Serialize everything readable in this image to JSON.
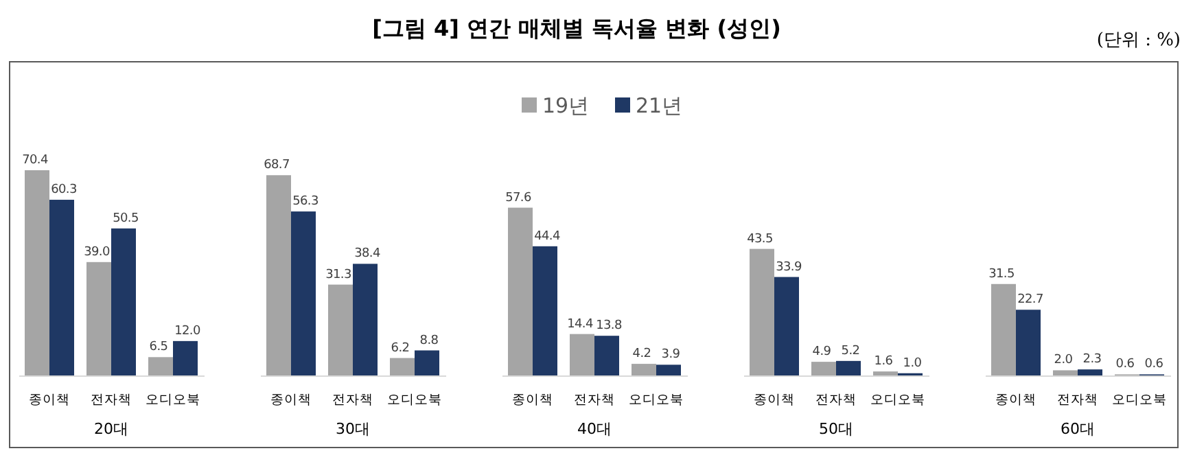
{
  "chart_data": [
    {
      "type": "other",
      "title": "[그림 4] 연간 매체별 독서율 변화 (성인)",
      "annotations": [
        "(단위 : %)"
      ]
    },
    {
      "type": "bar",
      "xlabel": "20대",
      "categories": [
        "종이책",
        "전자책",
        "오디오북"
      ],
      "series": [
        {
          "color": "#a5a5a5",
          "values": [
            70.4,
            39.0,
            6.5
          ],
          "value_labels": [
            "70.4",
            "39.0",
            "6.5"
          ]
        },
        {
          "color": "#1f3864",
          "values": [
            60.3,
            50.5,
            12.0
          ],
          "value_labels": [
            "60.3",
            "50.5",
            "12.0"
          ]
        }
      ]
    },
    {
      "type": "bar",
      "xlabel": "30대",
      "categories": [
        "종이책",
        "전자책",
        "오디오북"
      ],
      "series": [
        {
          "color": "#a5a5a5",
          "values": [
            68.7,
            31.3,
            6.2
          ],
          "value_labels": [
            "68.7",
            "31.3",
            "6.2"
          ]
        },
        {
          "color": "#1f3864",
          "values": [
            56.3,
            38.4,
            8.8
          ],
          "value_labels": [
            "56.3",
            "38.4",
            "8.8"
          ]
        }
      ]
    },
    {
      "type": "bar",
      "xlabel": "40대",
      "categories": [
        "종이책",
        "전자책",
        "오디오북"
      ],
      "legend": "top",
      "series": [
        {
          "name": "19년",
          "color": "#a5a5a5",
          "values": [
            57.6,
            14.4,
            4.2
          ],
          "value_labels": [
            "57.6",
            "14.4",
            "4.2"
          ]
        },
        {
          "name": "21년",
          "color": "#1f3864",
          "values": [
            44.4,
            13.8,
            3.9
          ],
          "value_labels": [
            "44.4",
            "13.8",
            "3.9"
          ]
        }
      ]
    },
    {
      "type": "bar",
      "xlabel": "50대",
      "categories": [
        "종이책",
        "전자책",
        "오디오북"
      ],
      "series": [
        {
          "color": "#a5a5a5",
          "values": [
            43.5,
            4.9,
            1.6
          ],
          "value_labels": [
            "43.5",
            "4.9",
            "1.6"
          ]
        },
        {
          "color": "#1f3864",
          "values": [
            33.9,
            5.2,
            1.0
          ],
          "value_labels": [
            "33.9",
            "5.2",
            "1.0"
          ]
        }
      ]
    },
    {
      "type": "bar",
      "xlabel": "60대",
      "categories": [
        "종이책",
        "전자책",
        "오디오북"
      ],
      "series": [
        {
          "color": "#a5a5a5",
          "values": [
            31.5,
            2.0,
            0.6
          ],
          "value_labels": [
            "31.5",
            "2.0",
            "0.6"
          ]
        },
        {
          "color": "#1f3864",
          "values": [
            22.7,
            2.3,
            0.6
          ],
          "value_labels": [
            "22.7",
            "2.3",
            "0.6"
          ]
        }
      ]
    }
  ]
}
